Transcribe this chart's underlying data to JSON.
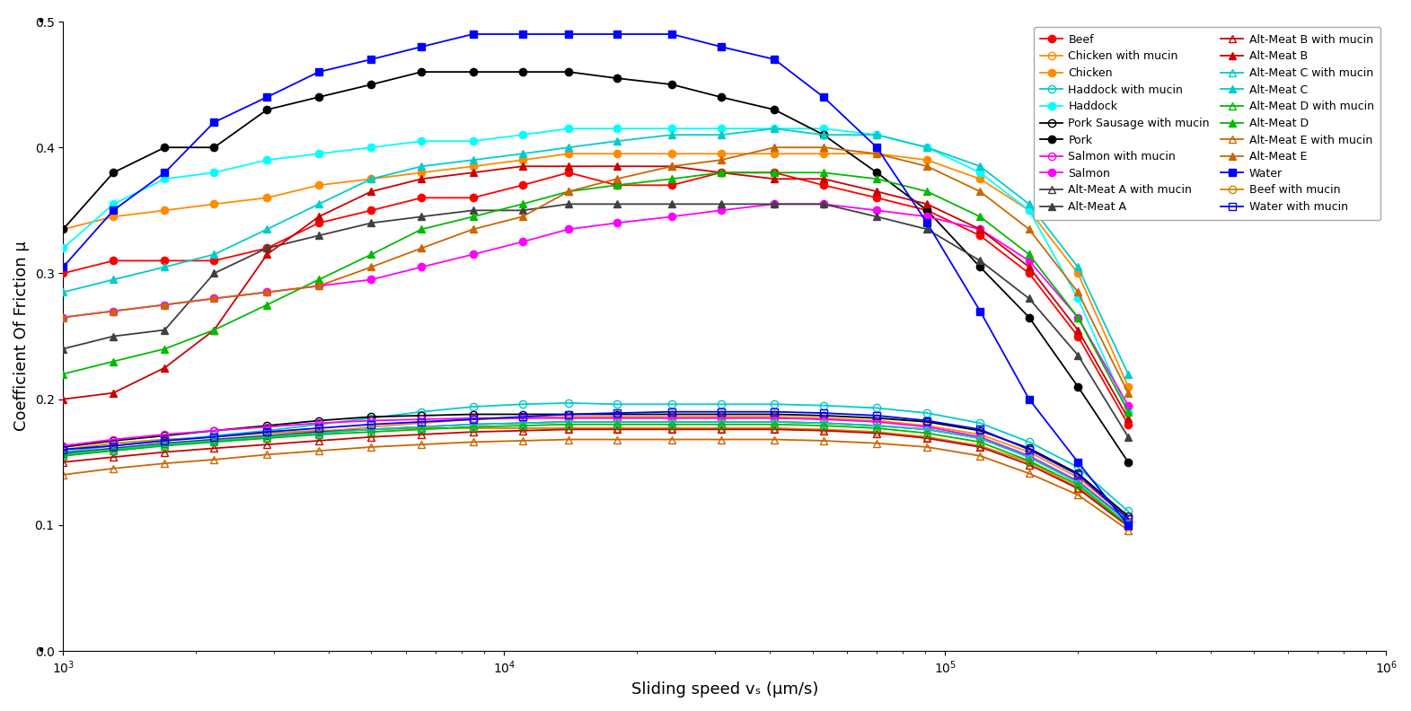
{
  "x": [
    1000,
    1300,
    1700,
    2200,
    2900,
    3800,
    5000,
    6500,
    8500,
    11000,
    14000,
    18000,
    24000,
    31000,
    41000,
    53000,
    70000,
    91000,
    120000,
    155000,
    200000,
    260000
  ],
  "series": {
    "Beef": {
      "color": "#ff0000",
      "marker": "o",
      "marker_filled": true,
      "y": [
        0.3,
        0.31,
        0.31,
        0.31,
        0.32,
        0.34,
        0.35,
        0.36,
        0.36,
        0.37,
        0.38,
        0.37,
        0.37,
        0.38,
        0.38,
        0.37,
        0.36,
        0.35,
        0.33,
        0.3,
        0.25,
        0.18
      ]
    },
    "Chicken": {
      "color": "#ff8c00",
      "marker": "o",
      "marker_filled": true,
      "y": [
        0.335,
        0.345,
        0.35,
        0.355,
        0.36,
        0.37,
        0.375,
        0.38,
        0.385,
        0.39,
        0.395,
        0.395,
        0.395,
        0.395,
        0.395,
        0.395,
        0.395,
        0.39,
        0.375,
        0.35,
        0.3,
        0.21
      ]
    },
    "Haddock": {
      "color": "#00ffff",
      "marker": "o",
      "marker_filled": true,
      "y": [
        0.32,
        0.355,
        0.375,
        0.38,
        0.39,
        0.395,
        0.4,
        0.405,
        0.405,
        0.41,
        0.415,
        0.415,
        0.415,
        0.415,
        0.415,
        0.415,
        0.41,
        0.4,
        0.38,
        0.35,
        0.28,
        0.19
      ]
    },
    "Pork": {
      "color": "#000000",
      "marker": "o",
      "marker_filled": true,
      "y": [
        0.335,
        0.38,
        0.4,
        0.4,
        0.43,
        0.44,
        0.45,
        0.46,
        0.46,
        0.46,
        0.46,
        0.455,
        0.45,
        0.44,
        0.43,
        0.41,
        0.38,
        0.35,
        0.305,
        0.265,
        0.21,
        0.15
      ]
    },
    "Salmon": {
      "color": "#ff00ff",
      "marker": "o",
      "marker_filled": true,
      "y": [
        0.265,
        0.27,
        0.275,
        0.28,
        0.285,
        0.29,
        0.295,
        0.305,
        0.315,
        0.325,
        0.335,
        0.34,
        0.345,
        0.35,
        0.355,
        0.355,
        0.35,
        0.345,
        0.335,
        0.31,
        0.265,
        0.195
      ]
    },
    "Alt-Meat A": {
      "color": "#404040",
      "marker": "^",
      "marker_filled": true,
      "y": [
        0.24,
        0.25,
        0.255,
        0.3,
        0.32,
        0.33,
        0.34,
        0.345,
        0.35,
        0.35,
        0.355,
        0.355,
        0.355,
        0.355,
        0.355,
        0.355,
        0.345,
        0.335,
        0.31,
        0.28,
        0.235,
        0.17
      ]
    },
    "Alt-Meat B": {
      "color": "#cc0000",
      "marker": "^",
      "marker_filled": true,
      "y": [
        0.2,
        0.205,
        0.225,
        0.255,
        0.315,
        0.345,
        0.365,
        0.375,
        0.38,
        0.385,
        0.385,
        0.385,
        0.385,
        0.38,
        0.375,
        0.375,
        0.365,
        0.355,
        0.335,
        0.305,
        0.255,
        0.185
      ]
    },
    "Alt-Meat C": {
      "color": "#00cccc",
      "marker": "^",
      "marker_filled": true,
      "y": [
        0.285,
        0.295,
        0.305,
        0.315,
        0.335,
        0.355,
        0.375,
        0.385,
        0.39,
        0.395,
        0.4,
        0.405,
        0.41,
        0.41,
        0.415,
        0.41,
        0.41,
        0.4,
        0.385,
        0.355,
        0.305,
        0.22
      ]
    },
    "Alt-Meat D": {
      "color": "#00bb00",
      "marker": "^",
      "marker_filled": true,
      "y": [
        0.22,
        0.23,
        0.24,
        0.255,
        0.275,
        0.295,
        0.315,
        0.335,
        0.345,
        0.355,
        0.365,
        0.37,
        0.375,
        0.38,
        0.38,
        0.38,
        0.375,
        0.365,
        0.345,
        0.315,
        0.265,
        0.19
      ]
    },
    "Alt-Meat E": {
      "color": "#cc6600",
      "marker": "^",
      "marker_filled": true,
      "y": [
        0.265,
        0.27,
        0.275,
        0.28,
        0.285,
        0.29,
        0.305,
        0.32,
        0.335,
        0.345,
        0.365,
        0.375,
        0.385,
        0.39,
        0.4,
        0.4,
        0.395,
        0.385,
        0.365,
        0.335,
        0.285,
        0.205
      ]
    },
    "Water": {
      "color": "#0000ff",
      "marker": "s",
      "marker_filled": true,
      "y": [
        0.305,
        0.35,
        0.38,
        0.42,
        0.44,
        0.46,
        0.47,
        0.48,
        0.49,
        0.49,
        0.49,
        0.49,
        0.49,
        0.48,
        0.47,
        0.44,
        0.4,
        0.34,
        0.27,
        0.2,
        0.15,
        0.1
      ]
    },
    "Beef with mucin": {
      "color": "#cc8800",
      "marker": "o",
      "marker_filled": false,
      "y": [
        0.16,
        0.165,
        0.168,
        0.17,
        0.173,
        0.175,
        0.176,
        0.177,
        0.177,
        0.177,
        0.177,
        0.177,
        0.177,
        0.177,
        0.177,
        0.176,
        0.174,
        0.17,
        0.163,
        0.15,
        0.13,
        0.1
      ]
    },
    "Chicken with mucin": {
      "color": "#ff8c00",
      "marker": "o",
      "marker_filled": false,
      "y": [
        0.155,
        0.16,
        0.164,
        0.167,
        0.17,
        0.174,
        0.178,
        0.181,
        0.184,
        0.185,
        0.186,
        0.186,
        0.186,
        0.186,
        0.186,
        0.185,
        0.183,
        0.179,
        0.172,
        0.158,
        0.138,
        0.105
      ]
    },
    "Haddock with mucin": {
      "color": "#00cccc",
      "marker": "o",
      "marker_filled": false,
      "y": [
        0.158,
        0.163,
        0.167,
        0.171,
        0.175,
        0.18,
        0.185,
        0.19,
        0.194,
        0.196,
        0.197,
        0.196,
        0.196,
        0.196,
        0.196,
        0.195,
        0.193,
        0.189,
        0.181,
        0.166,
        0.146,
        0.111
      ]
    },
    "Pork Sausage with mucin": {
      "color": "#000000",
      "marker": "o",
      "marker_filled": false,
      "y": [
        0.162,
        0.167,
        0.171,
        0.175,
        0.179,
        0.183,
        0.186,
        0.187,
        0.188,
        0.188,
        0.188,
        0.188,
        0.188,
        0.188,
        0.188,
        0.187,
        0.185,
        0.182,
        0.175,
        0.161,
        0.141,
        0.107
      ]
    },
    "Salmon with mucin": {
      "color": "#ff00ff",
      "marker": "o",
      "marker_filled": false,
      "y": [
        0.163,
        0.168,
        0.172,
        0.175,
        0.178,
        0.181,
        0.183,
        0.184,
        0.185,
        0.185,
        0.185,
        0.185,
        0.185,
        0.185,
        0.185,
        0.184,
        0.182,
        0.178,
        0.17,
        0.155,
        0.135,
        0.103
      ]
    },
    "Alt-Meat A with mucin": {
      "color": "#404040",
      "marker": "^",
      "marker_filled": false,
      "y": [
        0.157,
        0.161,
        0.165,
        0.168,
        0.171,
        0.174,
        0.176,
        0.178,
        0.18,
        0.181,
        0.182,
        0.182,
        0.182,
        0.182,
        0.182,
        0.181,
        0.179,
        0.176,
        0.169,
        0.154,
        0.134,
        0.103
      ]
    },
    "Alt-Meat B with mucin": {
      "color": "#cc0000",
      "marker": "^",
      "marker_filled": false,
      "y": [
        0.15,
        0.154,
        0.158,
        0.161,
        0.164,
        0.167,
        0.17,
        0.172,
        0.174,
        0.175,
        0.176,
        0.176,
        0.176,
        0.176,
        0.176,
        0.175,
        0.173,
        0.169,
        0.162,
        0.148,
        0.129,
        0.099
      ]
    },
    "Alt-Meat C with mucin": {
      "color": "#00cccc",
      "marker": "^",
      "marker_filled": false,
      "y": [
        0.156,
        0.16,
        0.164,
        0.167,
        0.17,
        0.173,
        0.176,
        0.178,
        0.18,
        0.181,
        0.182,
        0.182,
        0.182,
        0.182,
        0.182,
        0.181,
        0.179,
        0.176,
        0.169,
        0.154,
        0.134,
        0.102
      ]
    },
    "Alt-Meat D with mucin": {
      "color": "#00bb00",
      "marker": "^",
      "marker_filled": false,
      "y": [
        0.155,
        0.159,
        0.163,
        0.166,
        0.169,
        0.172,
        0.174,
        0.176,
        0.178,
        0.179,
        0.18,
        0.18,
        0.18,
        0.18,
        0.18,
        0.179,
        0.177,
        0.173,
        0.166,
        0.151,
        0.132,
        0.1
      ]
    },
    "Alt-Meat E with mucin": {
      "color": "#cc6600",
      "marker": "^",
      "marker_filled": false,
      "y": [
        0.14,
        0.145,
        0.149,
        0.152,
        0.156,
        0.159,
        0.162,
        0.164,
        0.166,
        0.167,
        0.168,
        0.168,
        0.168,
        0.168,
        0.168,
        0.167,
        0.165,
        0.162,
        0.155,
        0.141,
        0.124,
        0.096
      ]
    },
    "Water with mucin": {
      "color": "#0000ff",
      "marker": "s",
      "marker_filled": false,
      "y": [
        0.16,
        0.163,
        0.167,
        0.17,
        0.174,
        0.177,
        0.18,
        0.182,
        0.184,
        0.186,
        0.188,
        0.189,
        0.19,
        0.19,
        0.19,
        0.189,
        0.187,
        0.183,
        0.176,
        0.16,
        0.14,
        0.105
      ]
    }
  },
  "xlabel": "Sliding speed vₛ (μm/s)",
  "ylabel": "Coefficient Of Friction μ",
  "xlim": [
    1000,
    1000000
  ],
  "ylim": [
    0.0,
    0.5
  ],
  "yticks": [
    0.0,
    0.1,
    0.2,
    0.3,
    0.4,
    0.5
  ],
  "figsize": [
    15.71,
    7.92
  ],
  "dpi": 100,
  "legend_order": [
    "Beef",
    "Chicken with mucin",
    "Chicken",
    "Haddock with mucin",
    "Haddock",
    "Pork Sausage with mucin",
    "Pork",
    "Salmon with mucin",
    "Salmon",
    "Alt-Meat A with mucin",
    "Alt-Meat A",
    "Alt-Meat B with mucin",
    "Alt-Meat B",
    "Alt-Meat C with mucin",
    "Alt-Meat C",
    "Alt-Meat D with mucin",
    "Alt-Meat D",
    "Alt-Meat E with mucin",
    "Alt-Meat E",
    "Water",
    "Beef with mucin",
    "Water with mucin"
  ]
}
